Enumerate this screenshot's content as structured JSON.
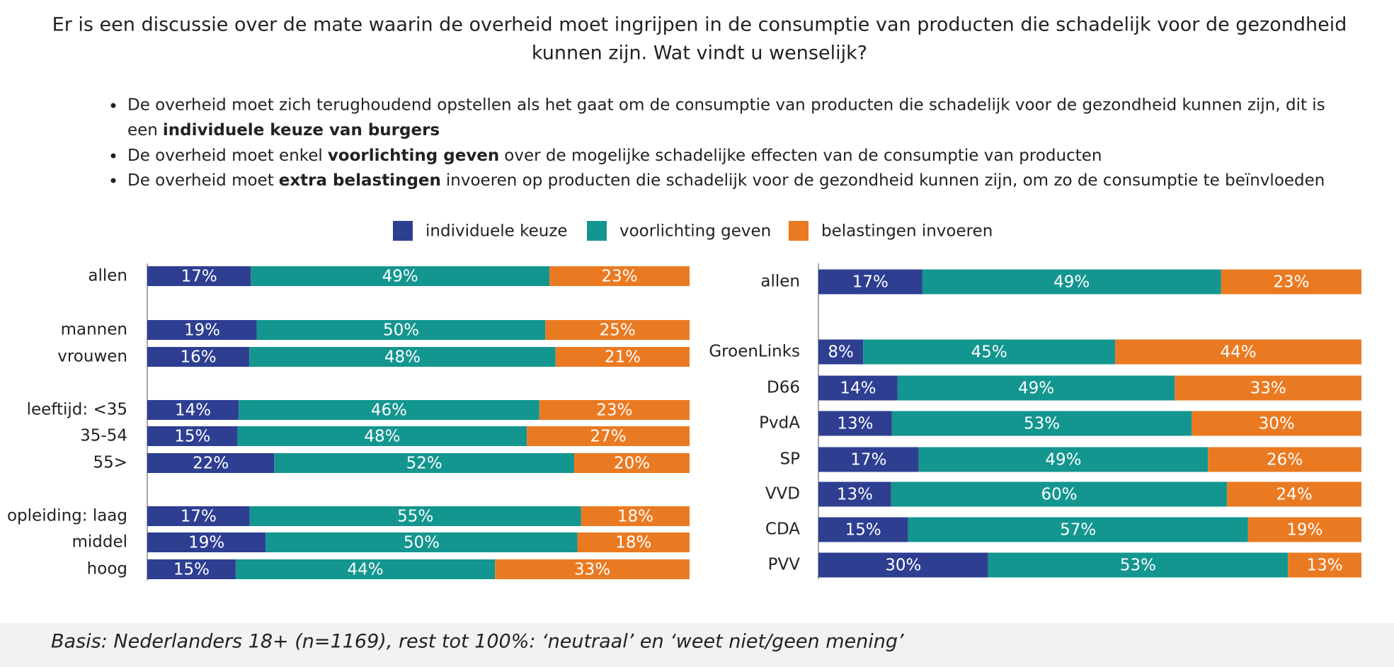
{
  "question": [
    "Er is een discussie over de mate waarin de overheid moet ingrijpen in de consumptie van producten die schadelijk voor de gezondheid",
    "kunnen zijn. Wat vindt u wenselijk?"
  ],
  "bullets": [
    [
      {
        "text": "De overheid moet zich terughoudend opstellen als het gaat om de consumptie van producten die schadelijk voor de gezondheid kunnen zijn, dit is",
        "bold": false
      },
      {
        "text": "een",
        "bold": false
      },
      {
        "text": "individuele keuze van burgers",
        "bold": true
      }
    ],
    [
      {
        "text": "De overheid moet enkel",
        "bold": false
      },
      {
        "text": "voorlichting geven",
        "bold": true
      },
      {
        "text": "over de mogelijke schadelijke effecten van de consumptie van producten",
        "bold": false
      }
    ],
    [
      {
        "text": "De overheid moet",
        "bold": false
      },
      {
        "text": "extra belastingen",
        "bold": true
      },
      {
        "text": "invoeren op producten die schadelijk voor de gezondheid kunnen zijn, om zo de consumptie te beïnvloeden",
        "bold": false
      }
    ]
  ],
  "footnote": "Basis: Nederlanders 18+ (n=1169), rest tot 100%: ‘neutraal’ en ‘weet niet/geen mening’",
  "chart_data": [
    {
      "type": "stacked-bar-horizontal",
      "categories": [
        "allen",
        "mannen",
        "vrouwen",
        "leeftijd: <35",
        "35-54",
        "55>",
        "opleiding: laag",
        "middel",
        "hoog"
      ],
      "series": [
        {
          "name": "individuele keuze",
          "color": "#2e3f92",
          "values": [
            17,
            19,
            16,
            14,
            15,
            22,
            17,
            19,
            15
          ],
          "value_labels": [
            "17%",
            "19%",
            "16%",
            "14%",
            "15%",
            "22%",
            "17%",
            "19%",
            "15%"
          ]
        },
        {
          "name": "voorlichting geven",
          "color": "#13968f",
          "values": [
            49,
            50,
            48,
            46,
            48,
            52,
            55,
            50,
            44
          ],
          "value_labels": [
            "49%",
            "50%",
            "48%",
            "46%",
            "48%",
            "52%",
            "55%",
            "50%",
            "44%"
          ]
        },
        {
          "name": "belastingen invoeren",
          "color": "#ea7a22",
          "values": [
            23,
            25,
            21,
            23,
            27,
            20,
            18,
            18,
            33
          ],
          "value_labels": [
            "23%",
            "25%",
            "21%",
            "23%",
            "27%",
            "20%",
            "18%",
            "18%",
            "33%"
          ]
        }
      ]
    },
    {
      "type": "stacked-bar-horizontal",
      "categories": [
        "allen",
        "GroenLinks",
        "D66",
        "PvdA",
        "SP",
        "VVD",
        "CDA",
        "PVV"
      ],
      "series": [
        {
          "name": "individuele keuze",
          "color": "#2e3f92",
          "values": [
            17,
            8,
            14,
            13,
            17,
            13,
            15,
            30
          ],
          "value_labels": [
            "17%",
            "8%",
            "14%",
            "13%",
            "17%",
            "13%",
            "15%",
            "30%"
          ]
        },
        {
          "name": "voorlichting geven",
          "color": "#13968f",
          "values": [
            49,
            45,
            49,
            53,
            49,
            60,
            57,
            53
          ],
          "value_labels": [
            "49%",
            "45%",
            "49%",
            "53%",
            "49%",
            "60%",
            "57%",
            "53%"
          ]
        },
        {
          "name": "belastingen invoeren",
          "color": "#ea7a22",
          "values": [
            23,
            44,
            33,
            30,
            26,
            24,
            19,
            13
          ],
          "value_labels": [
            "23%",
            "44%",
            "33%",
            "30%",
            "26%",
            "24%",
            "19%",
            "13%"
          ]
        }
      ]
    }
  ]
}
